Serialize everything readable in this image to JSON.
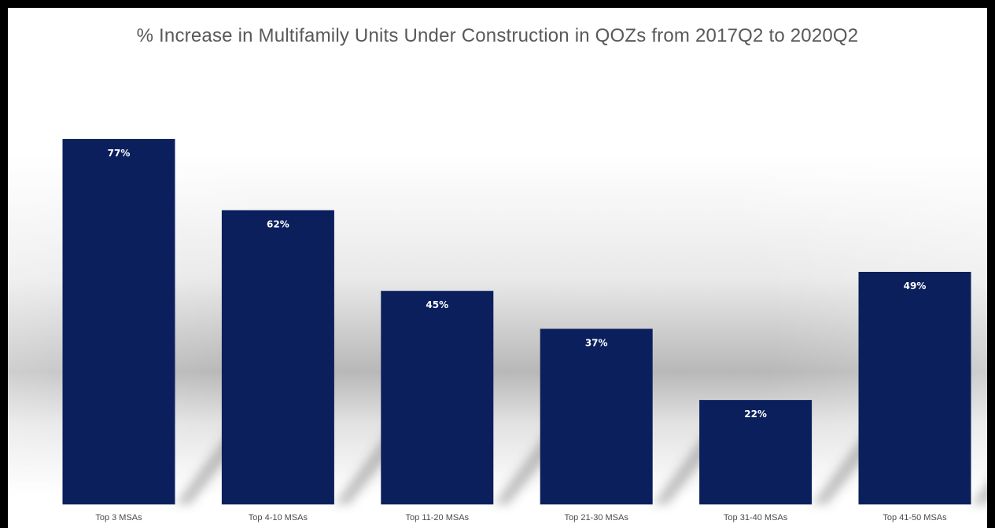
{
  "chart_data": {
    "type": "bar",
    "title": "% Increase in Multifamily Units Under Construction in QOZs from 2017Q2 to 2020Q2",
    "xlabel": "",
    "ylabel": "",
    "categories": [
      "Top 3 MSAs",
      "Top 4-10 MSAs",
      "Top 11-20 MSAs",
      "Top 21-30 MSAs",
      "Top 31-40 MSAs",
      "Top 41-50 MSAs"
    ],
    "values": [
      77,
      62,
      45,
      37,
      22,
      49
    ],
    "data_labels": [
      "77%",
      "62%",
      "45%",
      "37%",
      "22%",
      "49%"
    ],
    "ylim": [
      0,
      100
    ],
    "grid": false,
    "legend": "none",
    "bar_color": "#0a1f5c",
    "label_color": "#ffffff"
  }
}
